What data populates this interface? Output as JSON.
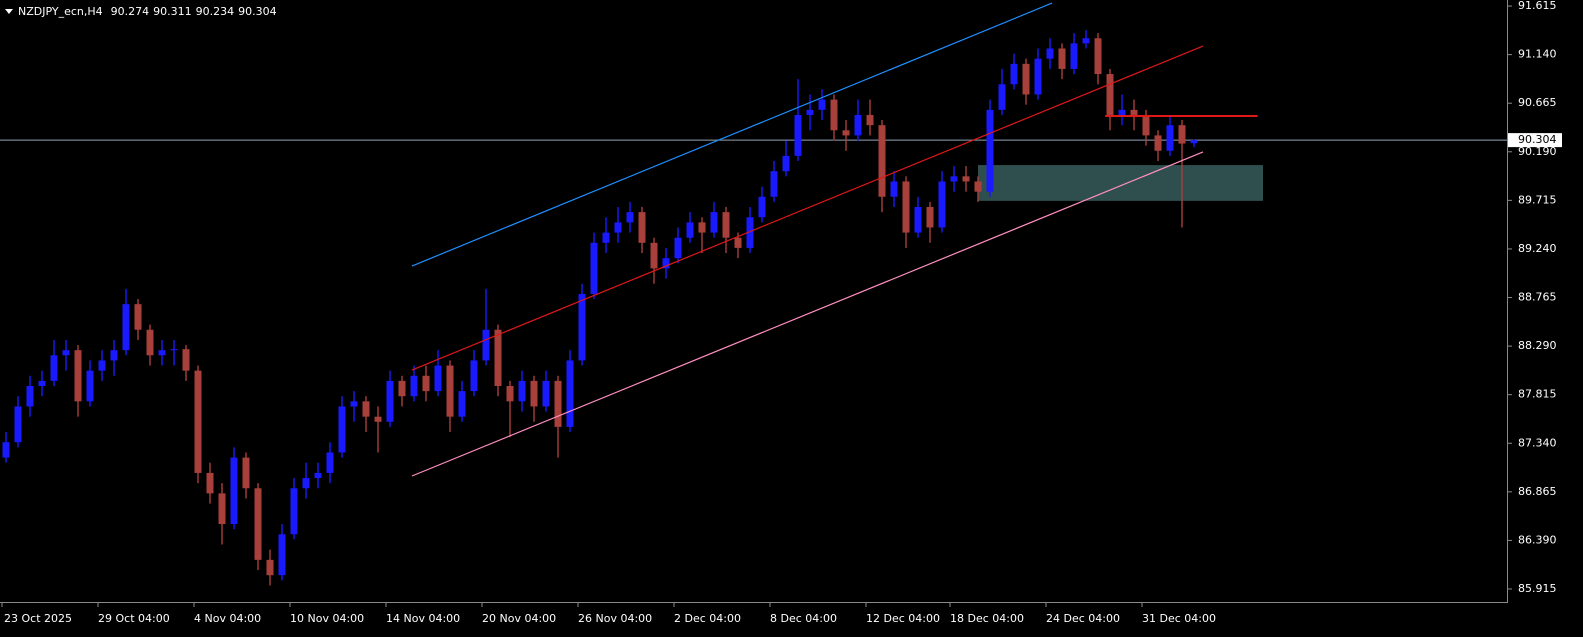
{
  "chart_data": {
    "type": "candlestick",
    "symbol": "NZDJPY_ecn,H4",
    "up_color": "#1a1aff",
    "down_color": "#a8403c",
    "ylim": [
      85.788,
      91.674
    ],
    "yticks": [
      91.615,
      {
        "value": 91.14,
        "label": "91.140"
      },
      90.665,
      {
        "value": 90.19,
        "label": "90.190"
      },
      89.715,
      {
        "value": 89.24,
        "label": "89.240"
      },
      88.765,
      {
        "value": 88.29,
        "label": "88.290"
      },
      87.815,
      {
        "value": 87.34,
        "label": "87.340"
      },
      86.865,
      {
        "value": 86.39,
        "label": "86.390"
      },
      85.915
    ],
    "categories": [
      "23 Oct 2025",
      null,
      null,
      null,
      null,
      null,
      null,
      null,
      "29 Oct 04:00",
      null,
      null,
      null,
      null,
      null,
      null,
      null,
      "4 Nov 04:00",
      null,
      null,
      null,
      null,
      null,
      null,
      null,
      "10 Nov 04:00",
      null,
      null,
      null,
      null,
      null,
      null,
      null,
      "14 Nov 04:00",
      null,
      null,
      null,
      null,
      null,
      null,
      null,
      "20 Nov 04:00",
      null,
      null,
      null,
      null,
      null,
      null,
      null,
      "26 Nov 04:00",
      null,
      null,
      null,
      null,
      null,
      null,
      null,
      "2 Dec 04:00",
      null,
      null,
      null,
      null,
      null,
      null,
      null,
      "8 Dec 04:00",
      null,
      null,
      null,
      null,
      null,
      null,
      null,
      "12 Dec 04:00",
      null,
      null,
      null,
      null,
      null,
      null,
      "18 Dec 04:00",
      null,
      null,
      null,
      null,
      null,
      null,
      null,
      "24 Dec 04:00",
      null,
      null,
      null,
      null,
      null,
      null,
      null,
      "31 Dec 04:00",
      null,
      null,
      null,
      null
    ],
    "candles": [
      [
        87.2,
        87.45,
        87.15,
        87.35
      ],
      [
        87.35,
        87.8,
        87.3,
        87.7
      ],
      [
        87.7,
        88.0,
        87.6,
        87.9
      ],
      [
        87.9,
        88.05,
        87.8,
        87.95
      ],
      [
        87.95,
        88.35,
        87.9,
        88.2
      ],
      [
        88.2,
        88.35,
        88.05,
        88.25
      ],
      [
        88.25,
        88.3,
        87.6,
        87.75
      ],
      [
        87.75,
        88.15,
        87.7,
        88.05
      ],
      [
        88.05,
        88.25,
        87.95,
        88.15
      ],
      [
        88.15,
        88.35,
        88.0,
        88.25
      ],
      [
        88.25,
        88.85,
        88.2,
        88.7
      ],
      [
        88.7,
        88.75,
        88.35,
        88.45
      ],
      [
        88.45,
        88.5,
        88.1,
        88.2
      ],
      [
        88.2,
        88.35,
        88.1,
        88.25
      ],
      [
        88.25,
        88.35,
        88.1,
        88.26
      ],
      [
        88.26,
        88.3,
        87.95,
        88.05
      ],
      [
        88.05,
        88.1,
        86.95,
        87.05
      ],
      [
        87.05,
        87.15,
        86.75,
        86.85
      ],
      [
        86.85,
        86.95,
        86.35,
        86.55
      ],
      [
        86.55,
        87.3,
        86.5,
        87.2
      ],
      [
        87.2,
        87.25,
        86.8,
        86.9
      ],
      [
        86.9,
        86.95,
        86.1,
        86.2
      ],
      [
        86.2,
        86.3,
        85.95,
        86.05
      ],
      [
        86.05,
        86.55,
        86.0,
        86.45
      ],
      [
        86.45,
        87.0,
        86.4,
        86.9
      ],
      [
        86.9,
        87.15,
        86.8,
        87.0
      ],
      [
        87.0,
        87.15,
        86.9,
        87.05
      ],
      [
        87.05,
        87.35,
        86.95,
        87.25
      ],
      [
        87.25,
        87.8,
        87.2,
        87.7
      ],
      [
        87.7,
        87.85,
        87.55,
        87.75
      ],
      [
        87.75,
        87.8,
        87.45,
        87.6
      ],
      [
        87.6,
        87.7,
        87.25,
        87.55
      ],
      [
        87.55,
        88.05,
        87.5,
        87.95
      ],
      [
        87.95,
        88.0,
        87.7,
        87.8
      ],
      [
        87.8,
        88.1,
        87.75,
        88.0
      ],
      [
        88.0,
        88.1,
        87.75,
        87.85
      ],
      [
        87.85,
        88.25,
        87.8,
        88.1
      ],
      [
        88.1,
        88.15,
        87.45,
        87.6
      ],
      [
        87.6,
        87.95,
        87.55,
        87.85
      ],
      [
        87.85,
        88.25,
        87.8,
        88.15
      ],
      [
        88.15,
        88.85,
        88.1,
        88.45
      ],
      [
        88.45,
        88.5,
        87.8,
        87.9
      ],
      [
        87.9,
        87.95,
        87.4,
        87.75
      ],
      [
        87.75,
        88.05,
        87.65,
        87.95
      ],
      [
        87.95,
        88.0,
        87.55,
        87.7
      ],
      [
        87.7,
        88.05,
        87.65,
        87.95
      ],
      [
        87.95,
        88.0,
        87.2,
        87.5
      ],
      [
        87.5,
        88.25,
        87.45,
        88.15
      ],
      [
        88.15,
        88.9,
        88.1,
        88.8
      ],
      [
        88.8,
        89.4,
        88.75,
        89.3
      ],
      [
        89.3,
        89.55,
        89.2,
        89.4
      ],
      [
        89.4,
        89.65,
        89.3,
        89.5
      ],
      [
        89.5,
        89.7,
        89.4,
        89.6
      ],
      [
        89.6,
        89.65,
        89.2,
        89.3
      ],
      [
        89.3,
        89.35,
        88.9,
        89.05
      ],
      [
        89.05,
        89.25,
        88.95,
        89.15
      ],
      [
        89.15,
        89.45,
        89.1,
        89.35
      ],
      [
        89.35,
        89.6,
        89.3,
        89.5
      ],
      [
        89.5,
        89.55,
        89.2,
        89.4
      ],
      [
        89.4,
        89.7,
        89.35,
        89.6
      ],
      [
        89.6,
        89.65,
        89.2,
        89.35
      ],
      [
        89.35,
        89.4,
        89.15,
        89.25
      ],
      [
        89.25,
        89.65,
        89.2,
        89.55
      ],
      [
        89.55,
        89.85,
        89.5,
        89.75
      ],
      [
        89.75,
        90.1,
        89.7,
        90.0
      ],
      [
        90.0,
        90.3,
        89.95,
        90.15
      ],
      [
        90.15,
        90.9,
        90.1,
        90.55
      ],
      [
        90.55,
        90.75,
        90.4,
        90.6
      ],
      [
        90.6,
        90.8,
        90.5,
        90.7
      ],
      [
        90.7,
        90.75,
        90.3,
        90.4
      ],
      [
        90.4,
        90.5,
        90.2,
        90.35
      ],
      [
        90.35,
        90.7,
        90.3,
        90.55
      ],
      [
        90.55,
        90.7,
        90.35,
        90.45
      ],
      [
        90.45,
        90.5,
        89.6,
        89.75
      ],
      [
        89.75,
        90.0,
        89.65,
        89.9
      ],
      [
        89.9,
        89.95,
        89.25,
        89.4
      ],
      [
        89.4,
        89.75,
        89.35,
        89.65
      ],
      [
        89.65,
        89.7,
        89.3,
        89.45
      ],
      [
        89.45,
        90.0,
        89.4,
        89.9
      ],
      [
        89.9,
        90.05,
        89.8,
        89.95
      ],
      [
        89.95,
        90.05,
        89.8,
        89.9
      ],
      [
        89.9,
        89.95,
        89.7,
        89.8
      ],
      [
        89.8,
        90.7,
        89.75,
        90.6
      ],
      [
        90.6,
        91.0,
        90.55,
        90.85
      ],
      [
        90.85,
        91.15,
        90.8,
        91.05
      ],
      [
        91.05,
        91.1,
        90.65,
        90.75
      ],
      [
        90.75,
        91.2,
        90.7,
        91.1
      ],
      [
        91.1,
        91.3,
        91.0,
        91.2
      ],
      [
        91.2,
        91.25,
        90.9,
        91.0
      ],
      [
        91.0,
        91.35,
        90.95,
        91.25
      ],
      [
        91.25,
        91.38,
        91.2,
        91.3
      ],
      [
        91.3,
        91.35,
        90.85,
        90.95
      ],
      [
        90.95,
        91.0,
        90.4,
        90.55
      ],
      [
        90.55,
        90.75,
        90.45,
        90.6
      ],
      [
        90.6,
        90.7,
        90.4,
        90.55
      ],
      [
        90.55,
        90.6,
        90.25,
        90.35
      ],
      [
        90.35,
        90.4,
        90.1,
        90.2
      ],
      [
        90.2,
        90.55,
        90.15,
        90.45
      ],
      [
        90.45,
        90.5,
        89.45,
        90.27
      ],
      [
        90.274,
        90.311,
        90.234,
        90.304
      ]
    ],
    "price_line": 90.304,
    "price_line_color": "#8fa3b5",
    "lines": [
      {
        "color": "#1e90ff",
        "x": [
          33.83,
          87.17
        ],
        "y": [
          89.073,
          91.644
        ]
      },
      {
        "color": "#e01818",
        "x": [
          33.83,
          99.75
        ],
        "y": [
          88.056,
          91.224
        ]
      },
      {
        "color": "#ff8fc0",
        "x": [
          33.83,
          99.75
        ],
        "y": [
          87.02,
          90.188
        ]
      },
      {
        "color": "#e01818",
        "x": [
          91.6,
          104.3
        ],
        "y": [
          90.54,
          90.54
        ]
      }
    ],
    "zone": {
      "color": "#2f4f4f",
      "x": [
        81,
        104.75
      ],
      "y": [
        89.71,
        90.06
      ]
    }
  }
}
